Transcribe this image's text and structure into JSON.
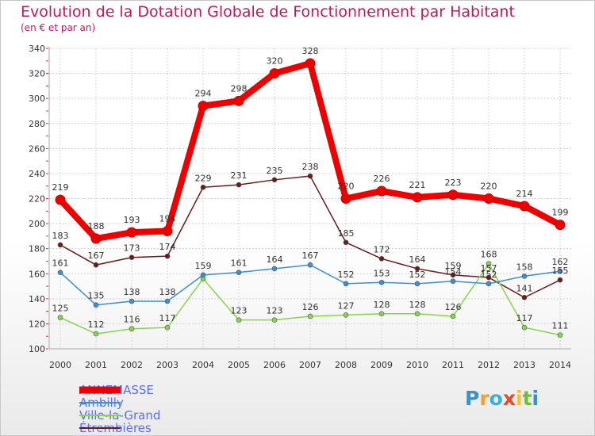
{
  "chart_data": {
    "type": "line",
    "title": "Evolution de la Dotation Globale de Fonctionnement par Habitant",
    "subtitle": "(en € et par an)",
    "xlabel": "",
    "ylabel": "",
    "ylim": [
      100,
      340
    ],
    "yticks": [
      100,
      120,
      140,
      160,
      180,
      200,
      220,
      240,
      260,
      280,
      300,
      320,
      340
    ],
    "grid": true,
    "categories": [
      "2000",
      "2001",
      "2002",
      "2003",
      "2004",
      "2005",
      "2006",
      "2007",
      "2008",
      "2009",
      "2010",
      "2011",
      "2012",
      "2013",
      "2014"
    ],
    "series": [
      {
        "name": "ANNEMASSE",
        "color": "#ee0000",
        "values": [
          219,
          188,
          193,
          194,
          294,
          298,
          320,
          328,
          220,
          226,
          221,
          223,
          220,
          214,
          199
        ]
      },
      {
        "name": "Ambilly",
        "color": "#3d8fd1",
        "values": [
          161,
          135,
          138,
          138,
          159,
          161,
          164,
          167,
          152,
          153,
          152,
          154,
          152,
          158,
          162
        ]
      },
      {
        "name": "Ville-la-Grand",
        "color": "#86d64b",
        "values": [
          125,
          112,
          116,
          117,
          156,
          123,
          123,
          126,
          127,
          128,
          128,
          126,
          168,
          117,
          111
        ]
      },
      {
        "name": "Étrembières",
        "color": "#6b1a1a",
        "values": [
          183,
          167,
          173,
          174,
          229,
          231,
          235,
          238,
          185,
          172,
          164,
          159,
          157,
          141,
          155
        ]
      }
    ],
    "value_labels": {
      "ANNEMASSE": [
        "219",
        "188",
        "193",
        "194",
        "294",
        "298",
        "320",
        "328",
        "220",
        "226",
        "221",
        "223",
        "220",
        "214",
        "199"
      ],
      "Ambilly": [
        "161",
        "135",
        "138",
        "138",
        "159",
        "161",
        "164",
        "167",
        "152",
        "153",
        "152",
        "154",
        "152",
        "158",
        "162"
      ],
      "Ville-la-Grand": [
        "125",
        "112",
        "116",
        "117",
        "",
        "123",
        "123",
        "126",
        "127",
        "128",
        "128",
        "126",
        "168",
        "117",
        "111"
      ],
      "Étrembières": [
        "183",
        "167",
        "173",
        "174",
        "229",
        "231",
        "235",
        "238",
        "185",
        "172",
        "164",
        "159",
        "157",
        "141",
        "155"
      ]
    }
  },
  "logo": {
    "text": "Proxiti"
  }
}
